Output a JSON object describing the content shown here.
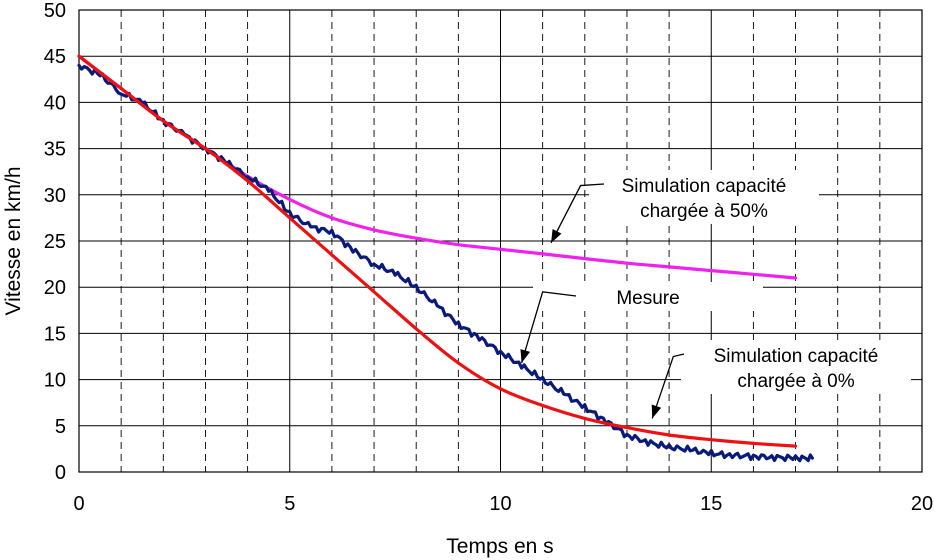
{
  "chart_data": {
    "type": "line",
    "title": "",
    "xlabel": "Temps en s",
    "ylabel": "Vitesse en km/h",
    "xlim": [
      0,
      20
    ],
    "ylim": [
      0,
      50
    ],
    "xticks": [
      0,
      5,
      10,
      15,
      20
    ],
    "yticks": [
      0,
      5,
      10,
      15,
      20,
      25,
      30,
      35,
      40,
      45,
      50
    ],
    "grid": {
      "major_x": "solid every 5 s",
      "minor_x": "dashed every 1 s",
      "major_y": "solid every 5 km/h"
    },
    "series": [
      {
        "name": "Mesure",
        "color": "#0a1a7a",
        "x": [
          0,
          0.5,
          1,
          1.5,
          2,
          2.5,
          3,
          3.5,
          4,
          4.5,
          5,
          5.5,
          6,
          6.5,
          7,
          7.5,
          8,
          8.5,
          9,
          9.5,
          10,
          10.5,
          11,
          11.5,
          12,
          12.5,
          13,
          13.5,
          14,
          14.5,
          15,
          15.5,
          16,
          16.5,
          17,
          17.4
        ],
        "y": [
          44,
          43,
          41,
          40,
          38,
          36.5,
          35,
          33.5,
          32,
          30.5,
          28,
          26.5,
          26,
          24,
          22.5,
          21.5,
          20,
          18,
          16,
          14.5,
          13,
          11.5,
          10,
          8.5,
          7,
          5.5,
          4,
          3.2,
          2.7,
          2.4,
          2.0,
          1.8,
          1.7,
          1.6,
          1.5,
          1.5
        ]
      },
      {
        "name": "Simulation capacité chargée à 0%",
        "color": "#ee1111",
        "x": [
          0,
          1,
          2,
          3,
          4,
          5,
          6,
          7,
          8,
          9,
          10,
          11,
          12,
          13,
          14,
          15,
          16,
          17
        ],
        "y": [
          45,
          41.5,
          38,
          35,
          31.5,
          27.5,
          23.5,
          19.5,
          15.5,
          11.8,
          9,
          7.2,
          5.8,
          4.8,
          4,
          3.5,
          3.1,
          2.8
        ]
      },
      {
        "name": "Simulation capacité chargée à 50%",
        "color": "#ee22ee",
        "x": [
          0,
          1,
          2,
          3,
          4,
          5,
          6,
          7,
          8,
          9,
          10,
          11,
          12,
          13,
          14,
          15,
          16,
          17
        ],
        "y": [
          45,
          41.5,
          38,
          35,
          32,
          29.5,
          27.5,
          26.2,
          25.3,
          24.6,
          24.1,
          23.6,
          23.1,
          22.6,
          22.2,
          21.8,
          21.4,
          21
        ]
      }
    ],
    "annotations": [
      {
        "lines": [
          "Simulation capacité",
          "chargée à 50%"
        ],
        "target_series": "Simulation capacité chargée à 50%",
        "arrow_to": [
          11.2,
          24.8
        ],
        "elbow": [
          11.9,
          31.0
        ]
      },
      {
        "lines": [
          "Mesure"
        ],
        "target_series": "Mesure",
        "arrow_to": [
          10.5,
          11.8
        ],
        "elbow": [
          11.0,
          19.5
        ]
      },
      {
        "lines": [
          "Simulation capacité",
          "chargée à 0%"
        ],
        "target_series": "Simulation capacité chargée à 0%",
        "arrow_to": [
          13.6,
          5.8
        ],
        "elbow": [
          14.1,
          12.5
        ]
      }
    ]
  }
}
